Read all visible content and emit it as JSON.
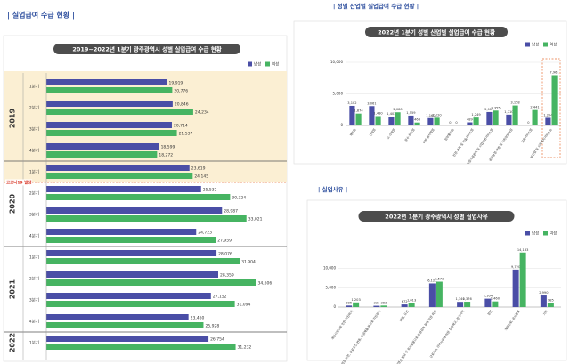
{
  "sections": [
    "| 실업급여 수급 현황 |",
    "| 성별 산업별 실업급여 수급 현황 |",
    "| 실업사유 |"
  ],
  "chart_data": [
    {
      "type": "hbar",
      "title": "2019~2022년 1분기 광주광역시 성별 실업급여 수급 현황",
      "annotation": "코로나19 발생",
      "groups": [
        {
          "label": "2019",
          "categories": [
            "1분기",
            "2분기",
            "3분기",
            "4분기"
          ]
        },
        {
          "label": "2020",
          "categories": [
            "1분기",
            "2분기",
            "3분기",
            "4분기"
          ]
        },
        {
          "label": "2021",
          "categories": [
            "1분기",
            "2분기",
            "3분기",
            "4분기"
          ]
        },
        {
          "label": "2022",
          "categories": [
            "1분기"
          ]
        }
      ],
      "xlim": [
        0,
        36000
      ],
      "series": [
        {
          "name": "남성",
          "color": "#4a4ea6",
          "values": [
            19919,
            20846,
            20714,
            18599,
            23619,
            25532,
            28987,
            24723,
            28076,
            28359,
            27152,
            23460,
            26754
          ],
          "value_labels": [
            "19,919",
            "20,846",
            "20,714",
            "18,599",
            "23,619",
            "25,532",
            "28,987",
            "24,723",
            "28,076",
            "28,359",
            "27,152",
            "23,460",
            "26,754"
          ]
        },
        {
          "name": "여성",
          "color": "#46b462",
          "values": [
            20776,
            24234,
            21537,
            18272,
            24145,
            30324,
            33021,
            27959,
            31904,
            34606,
            31094,
            25928,
            31232
          ],
          "value_labels": [
            "20,776",
            "24,234",
            "21,537",
            "18,272",
            "24,145",
            "30,324",
            "33,021",
            "27,959",
            "31,904",
            "34,606",
            "31,094",
            "25,928",
            "31,232"
          ]
        }
      ]
    },
    {
      "type": "bar",
      "title": "2022년 1분기 성별 산업별 실업급여 수급 현황",
      "categories": [
        "제조업",
        "건설업",
        "도·소매업",
        "운수·창고업",
        "숙박·음식점업",
        "정보통신업",
        "전문·과학 및 기술서비스업",
        "사업시설관리 및 사업지원서비스업",
        "공공행정·국방 및 사회보장행정",
        "교육서비스업",
        "보건업 및 사회복지서비스업"
      ],
      "ylim": [
        0,
        10000
      ],
      "yticks": [
        0,
        {
          "value": 5000,
          "label": "5,000"
        },
        {
          "value": 10000,
          "label": "10,000"
        }
      ],
      "series": [
        {
          "name": "남성",
          "color": "#4a4ea6",
          "values": [
            3102,
            3061,
            1403,
            1559,
            1160,
            0,
            489,
            2121,
            1710,
            0,
            1204
          ],
          "value_labels": [
            "3,102",
            "3,061",
            "1,403",
            "1,559",
            "1,160",
            "0",
            "489",
            "2,121",
            "1,710",
            "0",
            "1,204"
          ]
        },
        {
          "name": "여성",
          "color": "#46b462",
          "values": [
            1874,
            1480,
            2080,
            463,
            1220,
            0,
            1249,
            2355,
            3158,
            2441,
            7961
          ],
          "value_labels": [
            "1,874",
            "1,480",
            "2,080",
            "463",
            "1,220",
            "0",
            "1,249",
            "2,355",
            "3,158",
            "2,441",
            "7,961"
          ]
        }
      ]
    },
    {
      "type": "bar",
      "title": "2022년 1분기 광주광역시 성별 실업사유",
      "categories": [
        "개인사정으로 인한 자진퇴사",
        "사업장 이전, 근로조건 변동, 임금체불 등으로 자진퇴사",
        "폐업, 도산",
        "경영상 필요 및 회사불황으로 인원감축 등에 의한 퇴사",
        "근로자의 귀책사유에 의한 징계해고, 권고사직",
        "정년",
        "계약만료, 공사종료",
        "기타"
      ],
      "ylim": [
        0,
        15000
      ],
      "yticks": [
        0,
        {
          "value": 5000,
          "label": "5,000"
        },
        {
          "value": 10000,
          "label": "10,000"
        }
      ],
      "series": [
        {
          "name": "남성",
          "color": "#4a4ea6",
          "values": [
            386,
            331,
            672,
            6122,
            1340,
            2164,
            9720,
            2990
          ],
          "value_labels": [
            "386",
            "331",
            "672",
            "6,122",
            "1,340",
            "2,164",
            "9,720",
            "2,990"
          ]
        },
        {
          "name": "여성",
          "color": "#46b462",
          "values": [
            1203,
            383,
            1013,
            6572,
            1376,
            1460,
            14133,
            985
          ],
          "value_labels": [
            "1,203",
            "383",
            "1,013",
            "6,572",
            "1,376",
            "1,460",
            "14,133",
            "985"
          ]
        }
      ]
    }
  ]
}
